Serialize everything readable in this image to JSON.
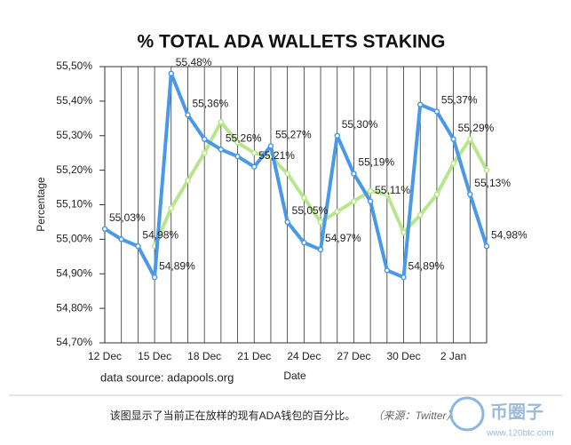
{
  "chart_data": {
    "type": "line",
    "title": "% TOTAL ADA WALLETS STAKING",
    "x_label": "Date",
    "y_label": "Percentage",
    "source": "data source: adapools.org",
    "categories": [
      "12 Dec",
      null,
      null,
      "15 Dec",
      null,
      null,
      "18 Dec",
      null,
      null,
      "21 Dec",
      null,
      null,
      "24 Dec",
      null,
      null,
      "27 Dec",
      null,
      null,
      "30 Dec",
      null,
      null,
      "2 Jan",
      null,
      null
    ],
    "series": [
      {
        "color": "#4a98e8",
        "values": [
          55.03,
          55.0,
          54.98,
          54.89,
          55.48,
          55.36,
          55.29,
          55.26,
          55.24,
          55.21,
          55.27,
          55.05,
          54.99,
          54.97,
          55.3,
          55.19,
          55.11,
          54.91,
          54.89,
          55.39,
          55.37,
          55.29,
          55.13,
          54.98
        ],
        "value_labels": [
          "55,03%",
          null,
          "54,98%",
          "54,89%",
          "55,48%",
          "55,36%",
          null,
          "55,26%",
          null,
          "55,21%",
          "55,27%",
          "55,05%",
          null,
          "54,97%",
          "55,30%",
          "55,19%",
          "55,11%",
          null,
          "54,89%",
          null,
          "55,37%",
          "55,29%",
          "55,13%",
          "54,98%"
        ]
      },
      {
        "color": "#b8e68a",
        "values": [
          null,
          null,
          null,
          54.98,
          55.09,
          55.17,
          55.25,
          55.34,
          55.28,
          55.25,
          55.24,
          55.19,
          55.12,
          55.05,
          55.08,
          55.11,
          55.14,
          55.13,
          55.02,
          55.07,
          55.13,
          55.22,
          55.29,
          55.2
        ]
      }
    ],
    "ylim": [
      54.7,
      55.5
    ],
    "yticks": [
      {
        "value": 54.7,
        "label": "54,70%"
      },
      {
        "value": 54.8,
        "label": "54,80%"
      },
      {
        "value": 54.9,
        "label": "54,90%"
      },
      {
        "value": 55.0,
        "label": "55,00%"
      },
      {
        "value": 55.1,
        "label": "55,10%"
      },
      {
        "value": 55.2,
        "label": "55,20%"
      },
      {
        "value": 55.3,
        "label": "55,30%"
      },
      {
        "value": 55.4,
        "label": "55,40%"
      },
      {
        "value": 55.5,
        "label": "55,50%"
      }
    ],
    "grid": true
  },
  "caption": {
    "text": "该图显示了当前正在放样的现有ADA钱包的百分比。",
    "source": "（来源：Twitter）"
  },
  "watermark": {
    "name": "币圈子",
    "url": "www.120btc.com"
  }
}
